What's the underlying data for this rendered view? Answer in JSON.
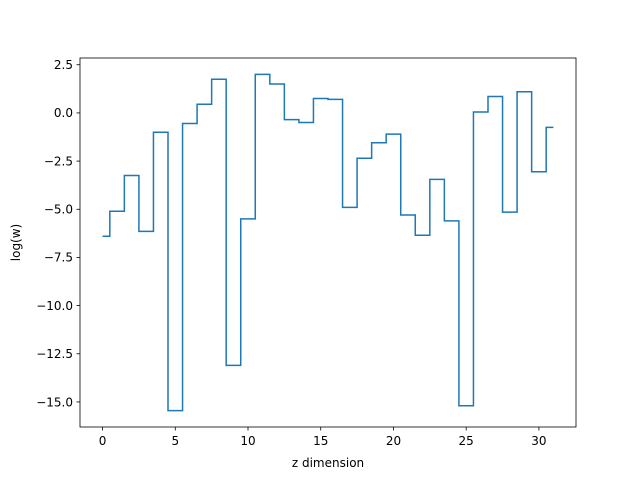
{
  "chart_data": {
    "type": "line",
    "drawstyle": "steps-mid",
    "title": "",
    "xlabel": "z dimension",
    "ylabel": "log(w)",
    "xlim": [
      -1.55,
      32.55
    ],
    "ylim": [
      -16.3,
      2.85
    ],
    "xticks": [
      0,
      5,
      10,
      15,
      20,
      25,
      30
    ],
    "yticks": [
      2.5,
      0,
      -2.5,
      -5,
      -7.5,
      -10,
      -12.5,
      -15
    ],
    "ytick_labels": [
      "2.5",
      "0.0",
      "−2.5",
      "−5.0",
      "−7.5",
      "−10.0",
      "−12.5",
      "−15.0"
    ],
    "grid": false,
    "legend": "none",
    "series": [
      {
        "color": "#1f77b4",
        "x": [
          0,
          1,
          2,
          3,
          4,
          5,
          6,
          7,
          8,
          9,
          10,
          11,
          12,
          13,
          14,
          15,
          16,
          17,
          18,
          19,
          20,
          21,
          22,
          23,
          24,
          25,
          26,
          27,
          28,
          29,
          30,
          31
        ],
        "y": [
          -6.4,
          -5.1,
          -3.25,
          -6.15,
          -1.0,
          -15.45,
          -0.55,
          0.45,
          1.75,
          -13.1,
          -5.5,
          2.0,
          1.5,
          -0.35,
          -0.5,
          0.75,
          0.7,
          -4.9,
          -2.35,
          -1.55,
          -1.1,
          -5.3,
          -6.35,
          -3.45,
          -5.6,
          -15.2,
          0.05,
          0.85,
          -5.15,
          1.1,
          -3.05,
          -0.75
        ]
      }
    ]
  }
}
